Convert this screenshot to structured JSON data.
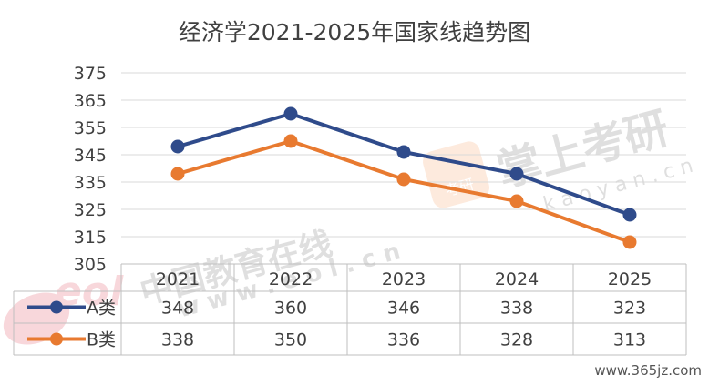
{
  "chart_data": {
    "type": "line",
    "title": "经济学2021-2025年国家线趋势图",
    "categories": [
      "2021",
      "2022",
      "2023",
      "2024",
      "2025"
    ],
    "ylim": [
      305,
      375
    ],
    "yticks": [
      375,
      365,
      355,
      345,
      335,
      325,
      315,
      305
    ],
    "grid": true,
    "legend": "table-left",
    "series": [
      {
        "name": "A类",
        "values": [
          348,
          360,
          346,
          338,
          323
        ],
        "color": "#2f4b8b"
      },
      {
        "name": "B类",
        "values": [
          338,
          350,
          336,
          328,
          313
        ],
        "color": "#e87a30"
      }
    ]
  },
  "watermarks": {
    "eol_logo_text": "eol",
    "eol_cn": "中国教育在线",
    "eol_url": "w w w . e o l . c n",
    "kaoyan_badge": "考研",
    "kaoyan_cn": "掌上考研",
    "kaoyan_url": "k a o y a n . c n",
    "site": "www.365jz.com"
  }
}
